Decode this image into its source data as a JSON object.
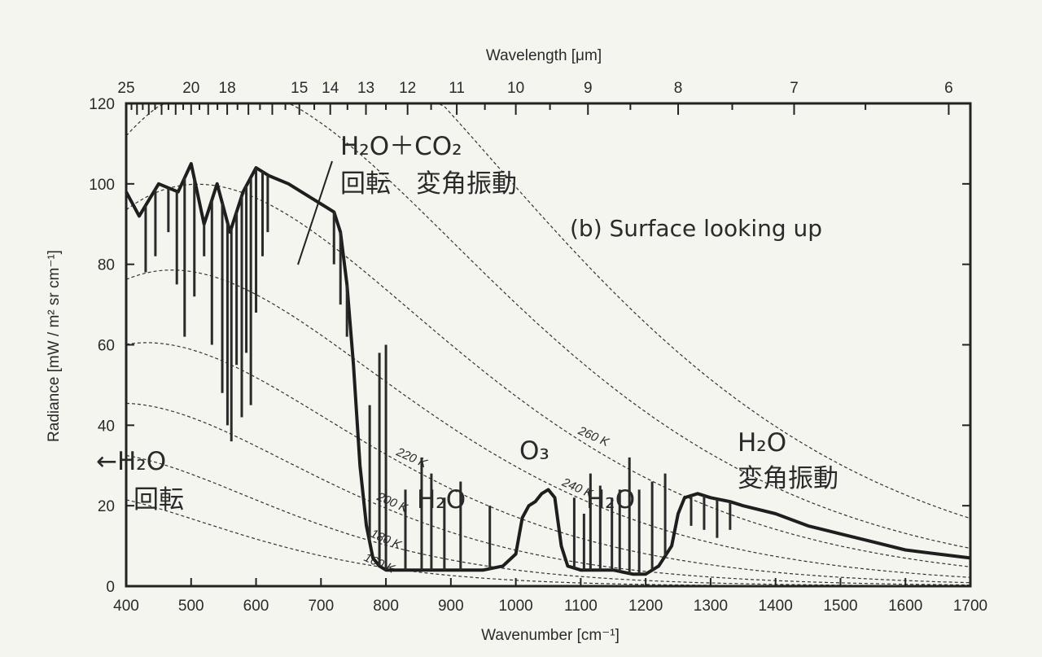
{
  "chart_data": {
    "type": "line",
    "title": "",
    "subtitle": "(b) Surface looking up",
    "xlabel": "Wavenumber [cm⁻¹]",
    "ylabel": "Radiance [mW / m² sr cm⁻¹]",
    "top_xlabel": "Wavelength [μm]",
    "xlim": [
      400,
      1700
    ],
    "ylim": [
      0,
      120
    ],
    "x_ticks": [
      400,
      500,
      600,
      700,
      800,
      900,
      1000,
      1100,
      1200,
      1300,
      1400,
      1500,
      1600,
      1700
    ],
    "y_ticks": [
      0,
      20,
      40,
      60,
      80,
      100,
      120
    ],
    "top_ticks": [
      {
        "label": "25",
        "um": 25
      },
      {
        "label": "20",
        "um": 20
      },
      {
        "label": "18",
        "um": 18
      },
      {
        "label": "15",
        "um": 15
      },
      {
        "label": "14",
        "um": 14
      },
      {
        "label": "13",
        "um": 13
      },
      {
        "label": "12",
        "um": 12
      },
      {
        "label": "11",
        "um": 11
      },
      {
        "label": "10",
        "um": 10
      },
      {
        "label": "9",
        "um": 9
      },
      {
        "label": "8",
        "um": 8
      },
      {
        "label": "7",
        "um": 7
      },
      {
        "label": "6",
        "um": 6
      }
    ],
    "grid": false,
    "planck_curves": [
      {
        "T": 300,
        "label": ""
      },
      {
        "T": 280,
        "label": ""
      },
      {
        "T": 260,
        "label": "260 K"
      },
      {
        "T": 240,
        "label": "240 K"
      },
      {
        "T": 220,
        "label": "220 K"
      },
      {
        "T": 200,
        "label": "200 K"
      },
      {
        "T": 180,
        "label": "180 K"
      },
      {
        "T": 160,
        "label": "160 K"
      }
    ],
    "series": [
      {
        "x": [
          400,
          420,
          450,
          480,
          500,
          520,
          540,
          560,
          580,
          600,
          620,
          650,
          680,
          700,
          720,
          730,
          740,
          750,
          760,
          770,
          780,
          790,
          800,
          820,
          850,
          880,
          900,
          920,
          950,
          980,
          1000,
          1010,
          1020,
          1030,
          1040,
          1050,
          1060,
          1070,
          1080,
          1100,
          1120,
          1150,
          1180,
          1200,
          1220,
          1240,
          1250,
          1260,
          1280,
          1300,
          1330,
          1350,
          1400,
          1450,
          1500,
          1550,
          1600,
          1650,
          1700
        ],
        "y": [
          98,
          92,
          100,
          98,
          105,
          90,
          100,
          88,
          98,
          104,
          102,
          100,
          97,
          95,
          93,
          88,
          75,
          55,
          30,
          15,
          7,
          5,
          4,
          4,
          4,
          4,
          4,
          4,
          4,
          5,
          8,
          17,
          20,
          21,
          23,
          24,
          22,
          10,
          5,
          4,
          4,
          4,
          3,
          3,
          5,
          10,
          18,
          22,
          23,
          22,
          21,
          20,
          18,
          15,
          13,
          11,
          9,
          8,
          7
        ]
      }
    ],
    "spikes": [
      [
        430,
        78
      ],
      [
        445,
        82
      ],
      [
        465,
        88
      ],
      [
        478,
        75
      ],
      [
        490,
        62
      ],
      [
        505,
        72
      ],
      [
        520,
        82
      ],
      [
        532,
        60
      ],
      [
        548,
        48
      ],
      [
        556,
        40
      ],
      [
        562,
        36
      ],
      [
        570,
        55
      ],
      [
        578,
        42
      ],
      [
        585,
        58
      ],
      [
        592,
        45
      ],
      [
        600,
        68
      ],
      [
        610,
        82
      ],
      [
        618,
        88
      ],
      [
        720,
        80
      ],
      [
        730,
        70
      ],
      [
        740,
        62
      ],
      [
        775,
        45
      ],
      [
        790,
        58
      ],
      [
        800,
        60
      ],
      [
        830,
        24
      ],
      [
        855,
        32
      ],
      [
        870,
        28
      ],
      [
        890,
        22
      ],
      [
        915,
        26
      ],
      [
        960,
        20
      ],
      [
        1090,
        22
      ],
      [
        1105,
        18
      ],
      [
        1115,
        28
      ],
      [
        1130,
        25
      ],
      [
        1148,
        22
      ],
      [
        1160,
        24
      ],
      [
        1175,
        32
      ],
      [
        1190,
        24
      ],
      [
        1210,
        26
      ],
      [
        1230,
        28
      ],
      [
        1270,
        15
      ],
      [
        1290,
        14
      ],
      [
        1310,
        12
      ],
      [
        1330,
        14
      ]
    ],
    "annotations": [
      {
        "id": "co2",
        "text": "H₂O＋CO₂",
        "sub": "回転　変角振動"
      },
      {
        "id": "h2o_rot",
        "text": "←H₂O",
        "sub": "回転"
      },
      {
        "id": "h2o_win",
        "text": "H₂O"
      },
      {
        "id": "o3",
        "text": "O₃"
      },
      {
        "id": "h2o_mid",
        "text": "H₂O"
      },
      {
        "id": "h2o_bend",
        "text": "H₂O",
        "sub": "変角振動"
      }
    ]
  }
}
